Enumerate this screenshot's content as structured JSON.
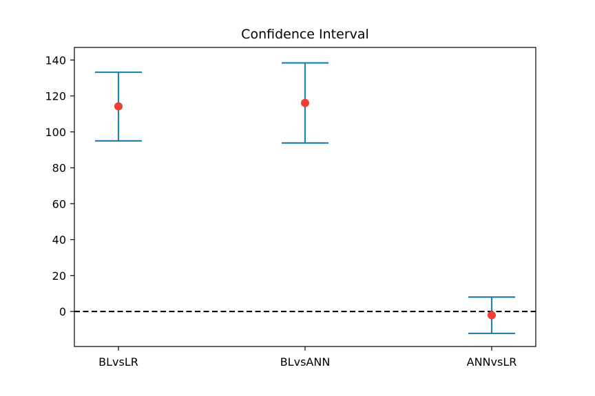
{
  "chart_data": {
    "type": "errorbar",
    "title": "Confidence Interval",
    "xlabel": "",
    "ylabel": "",
    "categories": [
      "BLvsLR",
      "BLvsANN",
      "ANNvsLR"
    ],
    "series": [
      {
        "values": [
          114.2,
          116.1,
          -2.1
        ],
        "lower": [
          95.0,
          93.8,
          -12.2
        ],
        "upper": [
          133.2,
          138.4,
          8.0
        ]
      }
    ],
    "reference_line": {
      "y": 0,
      "style": "dashed",
      "color": "#000000"
    },
    "ylim": [
      -19.5,
      147
    ],
    "yticks": [
      0,
      20,
      40,
      60,
      80,
      100,
      120,
      140
    ],
    "grid": false,
    "colors": {
      "errorbar": "#1f83b4",
      "point": "#f03e31"
    }
  }
}
